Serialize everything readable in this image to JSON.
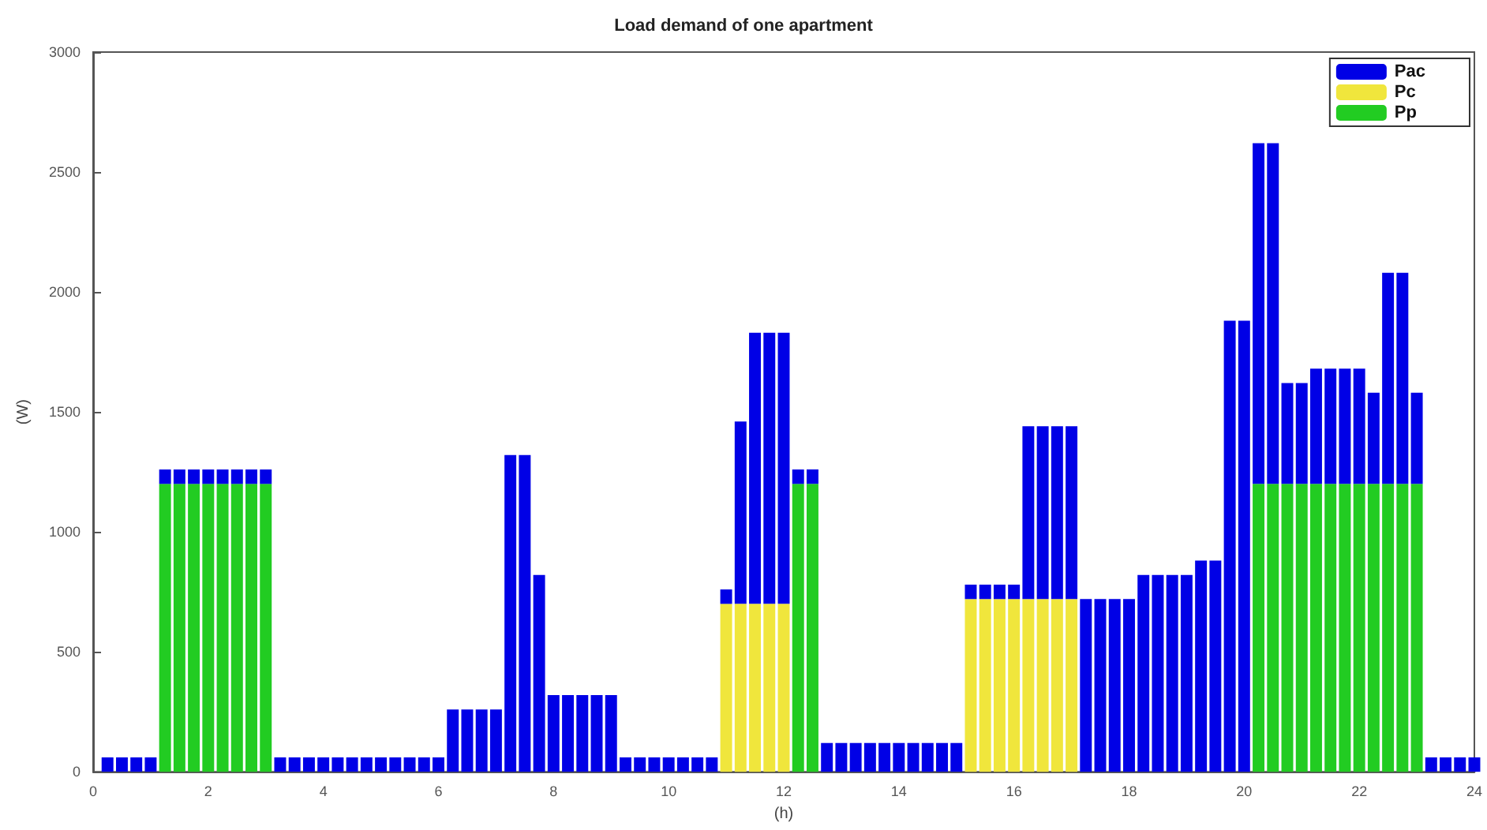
{
  "chart_data": {
    "type": "bar",
    "title": "Load demand of one apartment",
    "xlabel": "(h)",
    "ylabel": "(W)",
    "x": [
      0.25,
      0.5,
      0.75,
      1,
      1.25,
      1.5,
      1.75,
      2,
      2.25,
      2.5,
      2.75,
      3,
      3.25,
      3.5,
      3.75,
      4,
      4.25,
      4.5,
      4.75,
      5,
      5.25,
      5.5,
      5.75,
      6,
      6.25,
      6.5,
      6.75,
      7,
      7.25,
      7.5,
      7.75,
      8,
      8.25,
      8.5,
      8.75,
      9,
      9.25,
      9.5,
      9.75,
      10,
      10.25,
      10.5,
      10.75,
      11,
      11.25,
      11.5,
      11.75,
      12,
      12.25,
      12.5,
      12.75,
      13,
      13.25,
      13.5,
      13.75,
      14,
      14.25,
      14.5,
      14.75,
      15,
      15.25,
      15.5,
      15.75,
      16,
      16.25,
      16.5,
      16.75,
      17,
      17.25,
      17.5,
      17.75,
      18,
      18.25,
      18.5,
      18.75,
      19,
      19.25,
      19.5,
      19.75,
      20,
      20.25,
      20.5,
      20.75,
      21,
      21.25,
      21.5,
      21.75,
      22,
      22.25,
      22.5,
      22.75,
      23,
      23.25,
      23.5,
      23.75,
      24
    ],
    "series": [
      {
        "name": "Pp",
        "color": "#22cc22",
        "values": [
          0,
          0,
          0,
          0,
          1200,
          1200,
          1200,
          1200,
          1200,
          1200,
          1200,
          1200,
          0,
          0,
          0,
          0,
          0,
          0,
          0,
          0,
          0,
          0,
          0,
          0,
          0,
          0,
          0,
          0,
          0,
          0,
          0,
          0,
          0,
          0,
          0,
          0,
          0,
          0,
          0,
          0,
          0,
          0,
          0,
          0,
          0,
          0,
          0,
          0,
          1200,
          1200,
          0,
          0,
          0,
          0,
          0,
          0,
          0,
          0,
          0,
          0,
          0,
          0,
          0,
          0,
          0,
          0,
          0,
          0,
          0,
          0,
          0,
          0,
          0,
          0,
          0,
          0,
          0,
          0,
          0,
          0,
          1200,
          1200,
          1200,
          1200,
          1200,
          1200,
          1200,
          1200,
          1200,
          1200,
          1200,
          1200,
          0,
          0,
          0,
          0
        ]
      },
      {
        "name": "Pc",
        "color": "#f0e63c",
        "values": [
          0,
          0,
          0,
          0,
          0,
          0,
          0,
          0,
          0,
          0,
          0,
          0,
          0,
          0,
          0,
          0,
          0,
          0,
          0,
          0,
          0,
          0,
          0,
          0,
          0,
          0,
          0,
          0,
          0,
          0,
          0,
          0,
          0,
          0,
          0,
          0,
          0,
          0,
          0,
          0,
          0,
          0,
          0,
          700,
          700,
          700,
          700,
          700,
          0,
          0,
          0,
          0,
          0,
          0,
          0,
          0,
          0,
          0,
          0,
          0,
          720,
          720,
          720,
          720,
          720,
          720,
          720,
          720,
          0,
          0,
          0,
          0,
          0,
          0,
          0,
          0,
          0,
          0,
          0,
          0,
          0,
          0,
          0,
          0,
          0,
          0,
          0,
          0,
          0,
          0,
          0,
          0,
          0,
          0,
          0,
          0
        ]
      },
      {
        "name": "Pac",
        "color": "#0000e6",
        "values": [
          60,
          60,
          60,
          60,
          60,
          60,
          60,
          60,
          60,
          60,
          60,
          60,
          60,
          60,
          60,
          60,
          60,
          60,
          60,
          60,
          60,
          60,
          60,
          60,
          260,
          260,
          260,
          260,
          1320,
          1320,
          820,
          320,
          320,
          320,
          320,
          320,
          60,
          60,
          60,
          60,
          60,
          60,
          60,
          60,
          760,
          1130,
          1130,
          1130,
          60,
          60,
          120,
          120,
          120,
          120,
          120,
          120,
          120,
          120,
          120,
          120,
          60,
          60,
          60,
          60,
          720,
          720,
          720,
          720,
          720,
          720,
          720,
          720,
          820,
          820,
          820,
          820,
          880,
          880,
          1880,
          1880,
          1420,
          1420,
          420,
          420,
          480,
          480,
          480,
          480,
          380,
          880,
          880,
          380,
          60,
          60,
          60,
          60
        ]
      }
    ],
    "stacked": true,
    "xlim": [
      0,
      24
    ],
    "xticks": [
      0,
      2,
      4,
      6,
      8,
      10,
      12,
      14,
      16,
      18,
      20,
      22,
      24
    ],
    "ylim": [
      0,
      3000
    ],
    "yticks": [
      0,
      500,
      1000,
      1500,
      2000,
      2500,
      3000
    ],
    "legend": "top right"
  }
}
